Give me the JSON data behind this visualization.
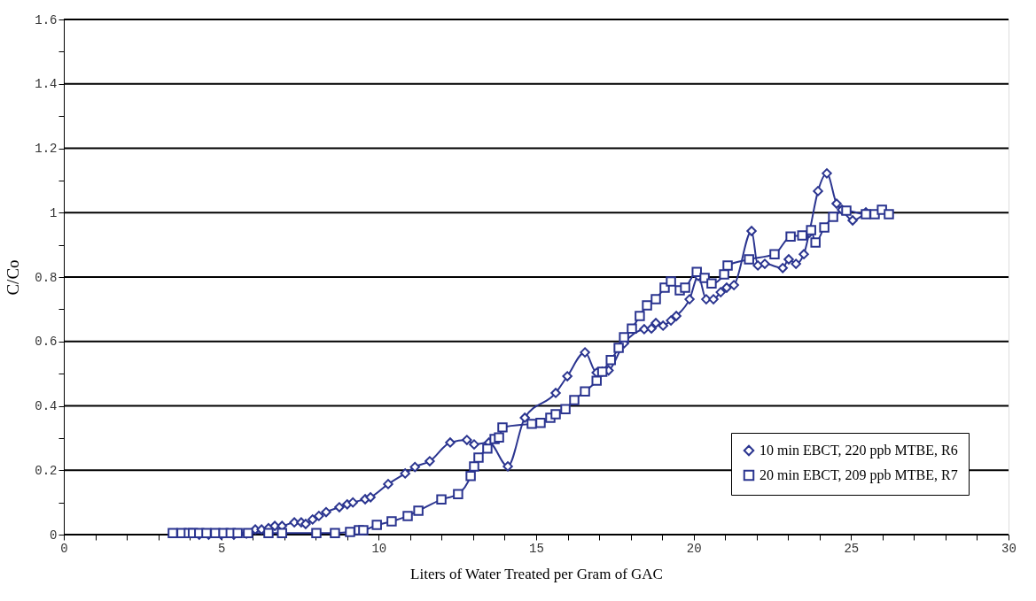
{
  "chart_data": {
    "type": "line",
    "xlabel": "Liters of Water Treated per Gram of GAC",
    "ylabel": "C/Co",
    "xlim": [
      0,
      30
    ],
    "ylim": [
      0,
      1.6
    ],
    "xticks": [
      0,
      {
        "value": 1,
        "label": null
      },
      {
        "value": 2,
        "label": null
      },
      {
        "value": 3,
        "label": null
      },
      {
        "value": 4,
        "label": null
      },
      5,
      {
        "value": 6,
        "label": null
      },
      {
        "value": 7,
        "label": null
      },
      {
        "value": 8,
        "label": null
      },
      {
        "value": 9,
        "label": null
      },
      10,
      {
        "value": 11,
        "label": null
      },
      {
        "value": 12,
        "label": null
      },
      {
        "value": 13,
        "label": null
      },
      {
        "value": 14,
        "label": null
      },
      15,
      {
        "value": 16,
        "label": null
      },
      {
        "value": 17,
        "label": null
      },
      {
        "value": 18,
        "label": null
      },
      {
        "value": 19,
        "label": null
      },
      20,
      {
        "value": 21,
        "label": null
      },
      {
        "value": 22,
        "label": null
      },
      {
        "value": 23,
        "label": null
      },
      {
        "value": 24,
        "label": null
      },
      25,
      {
        "value": 26,
        "label": null
      },
      {
        "value": 27,
        "label": null
      },
      {
        "value": 28,
        "label": null
      },
      {
        "value": 29,
        "label": null
      },
      30
    ],
    "yticks": [
      0,
      {
        "value": 0.1,
        "label": null
      },
      0.2,
      {
        "value": 0.3,
        "label": null
      },
      0.4,
      {
        "value": 0.5,
        "label": null
      },
      0.6,
      {
        "value": 0.7,
        "label": null
      },
      0.8,
      {
        "value": 0.9,
        "label": null
      },
      1,
      {
        "value": 1.1,
        "label": null
      },
      1.2,
      {
        "value": 1.3,
        "label": null
      },
      1.4,
      {
        "value": 1.5,
        "label": null
      },
      1.6
    ],
    "grid": "y",
    "legend": "bottom right",
    "line_style": "solid",
    "series": [
      {
        "name": "10 min EBCT, 220 ppb MTBE, R6",
        "color": "#2b3590",
        "marker": "diamond",
        "x": [
          4.3,
          4.6,
          5.0,
          5.4,
          5.8,
          6.08,
          6.28,
          6.5,
          6.7,
          6.93,
          7.32,
          7.54,
          7.68,
          7.9,
          8.1,
          8.33,
          8.75,
          9.0,
          9.18,
          9.57,
          9.74,
          10.3,
          10.84,
          11.15,
          11.62,
          12.27,
          12.8,
          13.03,
          13.5,
          14.1,
          14.64,
          15.62,
          15.99,
          16.55,
          16.92,
          17.1,
          17.3,
          17.79,
          18.43,
          18.66,
          18.8,
          19.03,
          19.28,
          19.45,
          19.87,
          20.15,
          20.4,
          20.63,
          20.86,
          21.05,
          21.28,
          21.84,
          22.04,
          22.26,
          22.83,
          23.02,
          23.25,
          23.5,
          23.67,
          23.95,
          24.23,
          24.54,
          24.71,
          25.05,
          25.47
        ],
        "values": [
          0,
          0,
          0,
          0,
          0.003,
          0.016,
          0.016,
          0.02,
          0.027,
          0.027,
          0.038,
          0.038,
          0.033,
          0.047,
          0.058,
          0.07,
          0.085,
          0.094,
          0.1,
          0.11,
          0.116,
          0.157,
          0.19,
          0.21,
          0.228,
          0.286,
          0.294,
          0.28,
          0.286,
          0.212,
          0.363,
          0.44,
          0.492,
          0.566,
          0.503,
          0.506,
          0.51,
          0.594,
          0.638,
          0.64,
          0.657,
          0.649,
          0.665,
          0.679,
          0.731,
          0.803,
          0.731,
          0.731,
          0.753,
          0.767,
          0.775,
          0.943,
          0.836,
          0.841,
          0.828,
          0.855,
          0.841,
          0.871,
          0.937,
          1.067,
          1.122,
          1.028,
          1.009,
          0.976,
          1.001
        ]
      },
      {
        "name": "20 min EBCT, 209 ppb MTBE, R7",
        "color": "#2b3590",
        "marker": "square",
        "x": [
          3.46,
          3.74,
          3.97,
          4.1,
          4.3,
          4.53,
          4.81,
          5.07,
          5.3,
          5.52,
          5.85,
          6.5,
          6.93,
          8.02,
          8.61,
          9.09,
          9.37,
          9.51,
          9.94,
          10.41,
          10.92,
          11.26,
          11.99,
          12.52,
          12.92,
          13.03,
          13.17,
          13.45,
          13.68,
          13.82,
          13.93,
          14.86,
          15.14,
          15.45,
          15.62,
          15.93,
          16.21,
          16.55,
          16.92,
          17.1,
          17.37,
          17.62,
          17.79,
          18.04,
          18.29,
          18.52,
          18.8,
          19.08,
          19.28,
          19.56,
          19.73,
          20.1,
          20.35,
          20.57,
          20.97,
          21.08,
          21.76,
          22.57,
          23.08,
          23.45,
          23.73,
          23.87,
          24.15,
          24.43,
          24.85,
          25.47,
          25.75,
          25.98,
          26.2
        ],
        "values": [
          0.005,
          0.005,
          0.005,
          0.005,
          0.005,
          0.005,
          0.005,
          0.005,
          0.005,
          0.005,
          0.005,
          0.005,
          0.005,
          0.005,
          0.005,
          0.008,
          0.014,
          0.014,
          0.03,
          0.041,
          0.058,
          0.074,
          0.109,
          0.126,
          0.182,
          0.212,
          0.239,
          0.267,
          0.297,
          0.302,
          0.333,
          0.344,
          0.347,
          0.363,
          0.374,
          0.39,
          0.418,
          0.445,
          0.478,
          0.506,
          0.542,
          0.58,
          0.613,
          0.64,
          0.679,
          0.712,
          0.731,
          0.767,
          0.786,
          0.759,
          0.767,
          0.816,
          0.797,
          0.78,
          0.808,
          0.836,
          0.855,
          0.871,
          0.926,
          0.929,
          0.946,
          0.907,
          0.954,
          0.987,
          1.006,
          0.995,
          0.995,
          1.009,
          0.995
        ]
      }
    ]
  }
}
